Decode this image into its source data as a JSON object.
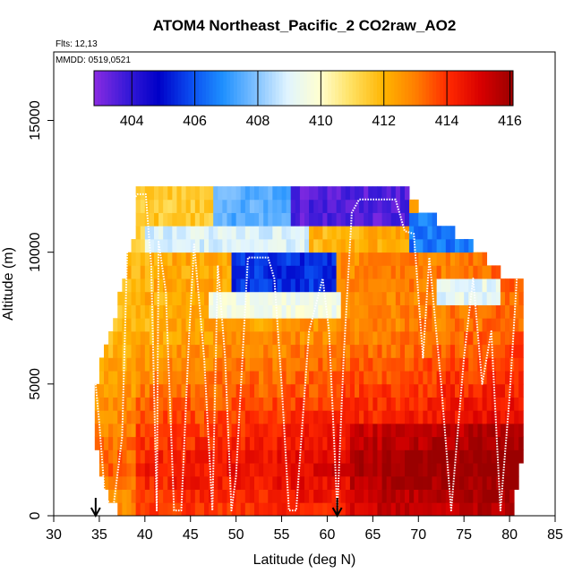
{
  "chart_data": {
    "type": "heatmap",
    "title": "ATOM4 Northeast_Pacific_2 CO2raw_AO2",
    "flights_label": "Flts: 12,13",
    "date_label": "MMDD: 0519,0521",
    "xlabel": "Latitude (deg N)",
    "ylabel": "Altitude (m)",
    "xlim": [
      30,
      85
    ],
    "ylim": [
      0,
      17600
    ],
    "x_ticks": [
      30,
      35,
      40,
      45,
      50,
      55,
      60,
      65,
      70,
      75,
      80,
      85
    ],
    "y_ticks": [
      0,
      5000,
      10000,
      15000
    ],
    "colorbar": {
      "range": [
        402.8,
        416.1
      ],
      "ticks": [
        404,
        406,
        408,
        410,
        412,
        414,
        416
      ],
      "colors": [
        "#8a2be2",
        "#3a1ad8",
        "#0000c8",
        "#0a4cf0",
        "#1e90ff",
        "#7ec0ff",
        "#e0f4ff",
        "#ffffd0",
        "#ffe060",
        "#ffb400",
        "#ff7d00",
        "#ff2800",
        "#d80000",
        "#9a0000"
      ]
    },
    "markers": [
      34.6,
      61.1
    ],
    "heatmap": {
      "lat_min": 34.5,
      "lat_max": 81.5,
      "lat_step": 0.5,
      "alt_step": 500,
      "column_tops_m": [
        [
          34.5,
          5000
        ],
        [
          35.5,
          6500
        ],
        [
          36.5,
          7500
        ],
        [
          37.5,
          9000
        ],
        [
          38.5,
          10500
        ],
        [
          39.0,
          12500
        ],
        [
          47.5,
          12500
        ],
        [
          56.0,
          12500
        ],
        [
          62.0,
          12500
        ],
        [
          67.0,
          12500
        ],
        [
          69.0,
          12000
        ],
        [
          70.0,
          11500
        ],
        [
          72.0,
          11000
        ],
        [
          76.0,
          10000
        ],
        [
          79.0,
          9000
        ],
        [
          81.5,
          8800
        ]
      ],
      "column_bottoms_m": [
        [
          34.5,
          2500
        ],
        [
          35.5,
          1200
        ],
        [
          36.5,
          500
        ],
        [
          37.5,
          0
        ],
        [
          80.0,
          0
        ],
        [
          81.5,
          3000
        ]
      ],
      "low_co2_regions": [
        {
          "lat": [
            56.0,
            69.0
          ],
          "alt": [
            11000,
            12500
          ],
          "value": 403.5
        },
        {
          "lat": [
            47.5,
            56.0
          ],
          "alt": [
            11000,
            12500
          ],
          "value": 407.5
        },
        {
          "lat": [
            39.0,
            47.5
          ],
          "alt": [
            11000,
            12500
          ],
          "value": 411.5
        },
        {
          "lat": [
            69.0,
            76.0
          ],
          "alt": [
            10000,
            11500
          ],
          "value": 406.5
        },
        {
          "lat": [
            40.0,
            58.0
          ],
          "alt": [
            10000,
            11000
          ],
          "value": 409.0
        },
        {
          "lat": [
            49.5,
            61.0
          ],
          "alt": [
            8500,
            10000
          ],
          "value": 405.5
        },
        {
          "lat": [
            47.0,
            61.5
          ],
          "alt": [
            7500,
            8500
          ],
          "value": 409.5
        },
        {
          "lat": [
            72.0,
            79.0
          ],
          "alt": [
            8000,
            9000
          ],
          "value": 409.2
        }
      ]
    },
    "flight_track": [
      [
        34.6,
        5000
      ],
      [
        35.0,
        3500
      ],
      [
        35.6,
        800
      ],
      [
        36.5,
        200
      ],
      [
        37.5,
        3000
      ],
      [
        38.2,
        11800
      ],
      [
        39.2,
        12200
      ],
      [
        40.1,
        12200
      ],
      [
        40.7,
        9500
      ],
      [
        41.3,
        200
      ],
      [
        41.5,
        10400
      ],
      [
        42.3,
        8500
      ],
      [
        43.2,
        200
      ],
      [
        44.0,
        200
      ],
      [
        44.8,
        6500
      ],
      [
        45.4,
        10300
      ],
      [
        46.5,
        6000
      ],
      [
        47.4,
        200
      ],
      [
        48.0,
        9500
      ],
      [
        48.8,
        6000
      ],
      [
        49.5,
        200
      ],
      [
        50.0,
        1500
      ],
      [
        51.3,
        9800
      ],
      [
        53.5,
        9800
      ],
      [
        54.2,
        9000
      ],
      [
        55.0,
        5000
      ],
      [
        55.8,
        200
      ],
      [
        56.6,
        200
      ],
      [
        58.0,
        7000
      ],
      [
        59.5,
        9000
      ],
      [
        60.2,
        7000
      ],
      [
        61.1,
        200
      ],
      [
        61.8,
        6000
      ],
      [
        62.7,
        11500
      ],
      [
        63.5,
        12000
      ],
      [
        67.5,
        12000
      ],
      [
        68.5,
        10800
      ],
      [
        69.5,
        10700
      ],
      [
        70.5,
        6000
      ],
      [
        71.2,
        9800
      ],
      [
        72.5,
        5000
      ],
      [
        73.6,
        200
      ],
      [
        75.0,
        6000
      ],
      [
        76.0,
        9000
      ],
      [
        77.0,
        5000
      ],
      [
        78.0,
        7000
      ],
      [
        79.0,
        200
      ],
      [
        80.0,
        4500
      ],
      [
        80.8,
        9000
      ]
    ]
  }
}
